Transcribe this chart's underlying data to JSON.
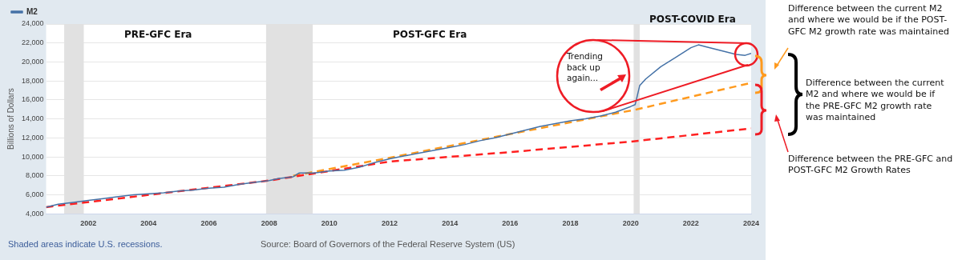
{
  "chart_data": {
    "type": "line",
    "ylabel": "Billions of Dollars",
    "xlim": [
      2000.6,
      2024
    ],
    "xticks": [
      2002,
      2004,
      2006,
      2008,
      2010,
      2012,
      2014,
      2016,
      2018,
      2020,
      2022,
      2024
    ],
    "ylim": [
      4000,
      24000
    ],
    "yticks": [
      {
        "value": 4000,
        "label": "4,000"
      },
      {
        "value": 6000,
        "label": "6,000"
      },
      {
        "value": 8000,
        "label": "8,000"
      },
      {
        "value": 10000,
        "label": "10,000"
      },
      {
        "value": 12000,
        "label": "12,000"
      },
      {
        "value": 14000,
        "label": "14,000"
      },
      {
        "value": 16000,
        "label": "16,000"
      },
      {
        "value": 18000,
        "label": "18,000"
      },
      {
        "value": 20000,
        "label": "20,000"
      },
      {
        "value": 22000,
        "label": "22,000"
      },
      {
        "value": 24000,
        "label": "24,000"
      }
    ],
    "grid": "y",
    "legend": "top left",
    "marker": "none",
    "series": [
      {
        "name": "M2",
        "color": "#4572a7",
        "line_style": "solid",
        "x": [
          2000.6,
          2001.0,
          2001.5,
          2002.0,
          2002.5,
          2003.0,
          2003.5,
          2004.0,
          2004.5,
          2005.0,
          2005.5,
          2006.0,
          2006.5,
          2007.0,
          2007.5,
          2008.0,
          2008.3,
          2008.8,
          2009.0,
          2009.5,
          2010.0,
          2010.5,
          2011.0,
          2011.5,
          2012.0,
          2012.5,
          2013.0,
          2013.5,
          2014.0,
          2014.5,
          2015.0,
          2015.5,
          2016.0,
          2016.5,
          2017.0,
          2017.5,
          2018.0,
          2018.5,
          2019.0,
          2019.5,
          2020.0,
          2020.15,
          2020.3,
          2020.5,
          2021.0,
          2021.5,
          2022.0,
          2022.25,
          2022.5,
          2023.0,
          2023.5,
          2023.8,
          2024.0
        ],
        "values": [
          4700,
          5000,
          5200,
          5400,
          5600,
          5800,
          6000,
          6100,
          6200,
          6400,
          6500,
          6700,
          6800,
          7100,
          7300,
          7500,
          7700,
          7900,
          8300,
          8300,
          8500,
          8600,
          8900,
          9400,
          9800,
          10100,
          10400,
          10700,
          11000,
          11300,
          11700,
          12000,
          12400,
          12800,
          13200,
          13500,
          13800,
          14000,
          14300,
          14700,
          15300,
          15500,
          17500,
          18200,
          19500,
          20500,
          21500,
          21800,
          21600,
          21200,
          20800,
          20700,
          20900
        ]
      },
      {
        "color": "#ff2020",
        "line_style": "dashed",
        "x": [
          2000.6,
          2008,
          2012,
          2016,
          2020,
          2024
        ],
        "values": [
          4700,
          7500,
          9500,
          10500,
          11600,
          13000
        ]
      },
      {
        "color": "#ff9a1e",
        "line_style": "dashed",
        "x": [
          2008.8,
          2012,
          2016,
          2020.2,
          2024
        ],
        "values": [
          8000,
          9900,
          12400,
          15000,
          17800
        ]
      }
    ],
    "bands": [
      {
        "axis": "x",
        "from": 2001.2,
        "to": 2001.85,
        "color": "#e1e1e1"
      },
      {
        "axis": "x",
        "from": 2007.9,
        "to": 2009.45,
        "color": "#e1e1e1"
      },
      {
        "axis": "x",
        "from": 2020.1,
        "to": 2020.3,
        "color": "#e1e1e1"
      }
    ],
    "annotations": [
      "PRE-GFC Era",
      "POST-GFC Era",
      "POST-COVID Era",
      "Trending back up again...",
      "Difference between the current M2 and where we would be if the POST-GFC M2 growth rate was maintained",
      "Difference between the current M2 and where we would be if the PRE-GFC M2 growth rate was maintained",
      "Difference between the PRE-GFC and POST-GFC M2 Growth Rates",
      "Shaded areas indicate U.S. recessions.",
      "Source: Board of Governors of the Federal Reserve System (US)"
    ]
  }
}
